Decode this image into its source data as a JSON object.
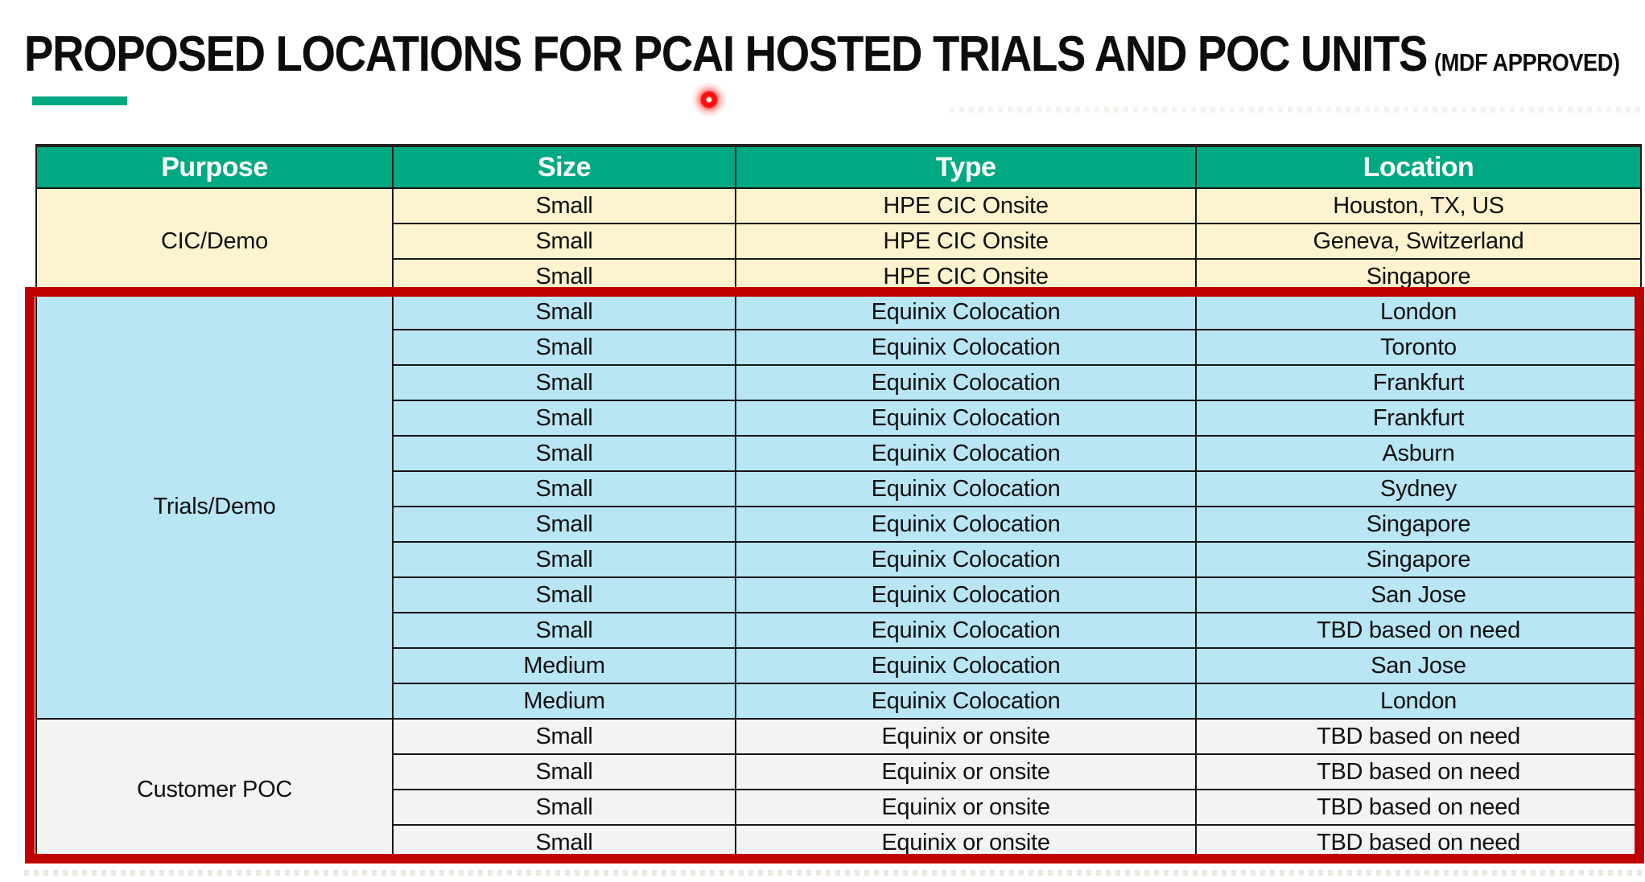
{
  "title": {
    "main": "PROPOSED LOCATIONS FOR PCAI HOSTED TRIALS AND POC UNITS",
    "suffix": "(MDF APPROVED)"
  },
  "colors": {
    "header_green": "#01A982",
    "cream": "#FDF3CE",
    "blue": "#B8E6F4",
    "gray": "#F3F3F3",
    "red_border": "#C00000",
    "laser_red": "#FF1010"
  },
  "table": {
    "columns": [
      "Purpose",
      "Size",
      "Type",
      "Location"
    ],
    "groups": [
      {
        "purpose": "CIC/Demo",
        "bg": "cream",
        "rows": [
          [
            "Small",
            "HPE CIC Onsite",
            "Houston, TX, US"
          ],
          [
            "Small",
            "HPE CIC Onsite",
            "Geneva, Switzerland"
          ],
          [
            "Small",
            "HPE CIC Onsite",
            "Singapore"
          ]
        ]
      },
      {
        "purpose": "Trials/Demo",
        "bg": "blue",
        "rows": [
          [
            "Small",
            "Equinix Colocation",
            "London"
          ],
          [
            "Small",
            "Equinix Colocation",
            "Toronto"
          ],
          [
            "Small",
            "Equinix Colocation",
            "Frankfurt"
          ],
          [
            "Small",
            "Equinix Colocation",
            "Frankfurt"
          ],
          [
            "Small",
            "Equinix Colocation",
            "Asburn"
          ],
          [
            "Small",
            "Equinix Colocation",
            "Sydney"
          ],
          [
            "Small",
            "Equinix Colocation",
            "Singapore"
          ],
          [
            "Small",
            "Equinix Colocation",
            "Singapore"
          ],
          [
            "Small",
            "Equinix Colocation",
            "San Jose"
          ],
          [
            "Small",
            "Equinix Colocation",
            "TBD based on need"
          ],
          [
            "Medium",
            "Equinix Colocation",
            "San Jose"
          ],
          [
            "Medium",
            "Equinix Colocation",
            "London"
          ]
        ]
      },
      {
        "purpose": "Customer POC",
        "bg": "gray",
        "rows": [
          [
            "Small",
            "Equinix or onsite",
            "TBD based on need"
          ],
          [
            "Small",
            "Equinix or onsite",
            "TBD based on need"
          ],
          [
            "Small",
            "Equinix or onsite",
            "TBD based on need"
          ],
          [
            "Small",
            "Equinix or onsite",
            "TBD based on need"
          ]
        ]
      }
    ],
    "highlighted_sections": [
      "Trials/Demo",
      "Customer POC"
    ]
  }
}
